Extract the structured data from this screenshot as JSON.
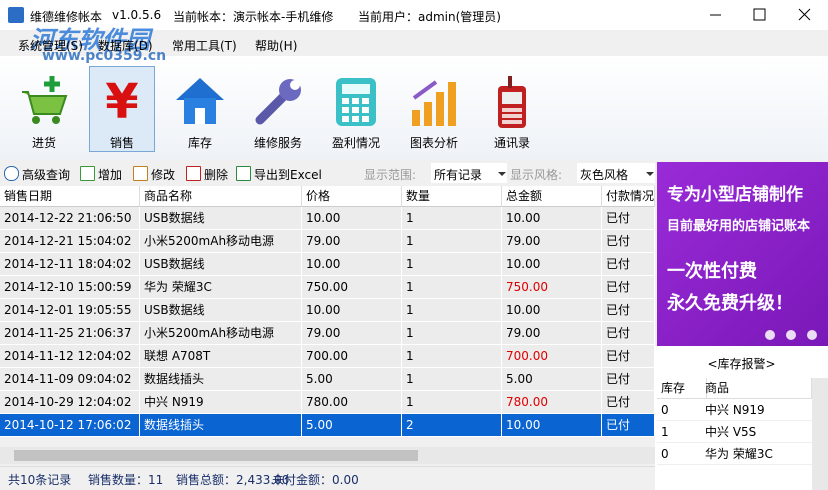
{
  "title_bar": {
    "app": "维德维修帐本",
    "version": "v1.0.5.6",
    "book": "当前帐本：演示帐本-手机维修",
    "user": "当前用户：admin(管理员)"
  },
  "watermark": {
    "name": "河东软件园",
    "url": "www.pc0359.cn"
  },
  "menu": [
    "系统管理(S)",
    "数据库(D)",
    "常用工具(T)",
    "帮助(H)"
  ],
  "toolbar": {
    "items": [
      "进货",
      "销售",
      "库存",
      "维修服务",
      "盈利情况",
      "图表分析",
      "通讯录"
    ],
    "selected": 1
  },
  "actions": [
    "高级查询",
    "增加",
    "修改",
    "删除",
    "导出到Excel"
  ],
  "filters": [
    {
      "label": "显示范围:",
      "value": "所有记录"
    },
    {
      "label": "显示风格:",
      "value": "灰色风格"
    }
  ],
  "table": {
    "columns": [
      "销售日期",
      "商品名称",
      "价格",
      "数量",
      "总金额",
      "付款情况"
    ],
    "rows": [
      {
        "cells": [
          "2014-12-22 21:06:50",
          "USB数据线",
          "10.00",
          "1",
          "10.00",
          "已付"
        ]
      },
      {
        "cells": [
          "2014-12-21 15:04:02",
          "小米5200mAh移动电源",
          "79.00",
          "1",
          "79.00",
          "已付"
        ]
      },
      {
        "cells": [
          "2014-12-11 18:04:02",
          "USB数据线",
          "10.00",
          "1",
          "10.00",
          "已付"
        ]
      },
      {
        "cells": [
          "2014-12-10 15:00:59",
          "华为 荣耀3C",
          "750.00",
          "1",
          "750.00",
          "已付"
        ],
        "color": "#e00000"
      },
      {
        "cells": [
          "2014-12-01 19:05:55",
          "USB数据线",
          "10.00",
          "1",
          "10.00",
          "已付"
        ]
      },
      {
        "cells": [
          "2014-11-25 21:06:37",
          "小米5200mAh移动电源",
          "79.00",
          "1",
          "79.00",
          "已付"
        ]
      },
      {
        "cells": [
          "2014-11-12 12:04:02",
          "联想 A708T",
          "700.00",
          "1",
          "700.00",
          "已付"
        ],
        "color": "#e00000"
      },
      {
        "cells": [
          "2014-11-09 09:04:02",
          "数据线插头",
          "5.00",
          "1",
          "5.00",
          "已付"
        ]
      },
      {
        "cells": [
          "2014-10-29 12:04:02",
          "中兴 N919",
          "780.00",
          "1",
          "780.00",
          "已付"
        ],
        "color": "#e00000"
      },
      {
        "cells": [
          "2014-10-12 17:06:02",
          "数据线插头",
          "5.00",
          "2",
          "10.00",
          "已付"
        ]
      }
    ],
    "selected_row": 9
  },
  "status": [
    "共10条记录",
    "销售数量：11",
    "销售总额：2,433.00",
    "未付金额：0.00"
  ],
  "ad": {
    "lines": [
      "专为小型店铺制作",
      "目前最好用的店铺记账本",
      "一次性付费",
      "永久免费升级！"
    ]
  },
  "stock_alert": {
    "title": "<库存报警>",
    "columns": [
      "库存",
      "商品"
    ],
    "rows": [
      [
        "0",
        "中兴 N919"
      ],
      [
        "1",
        "中兴 V5S"
      ],
      [
        "0",
        "华为 荣耀3C"
      ]
    ]
  }
}
